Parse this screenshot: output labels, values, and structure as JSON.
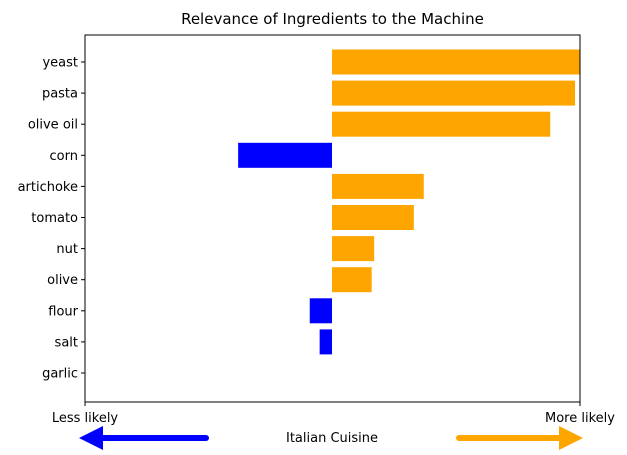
{
  "chart_data": {
    "type": "bar",
    "orientation": "horizontal",
    "title": "Relevance of Ingredients to the Machine",
    "categories": [
      "yeast",
      "pasta",
      "olive oil",
      "corn",
      "artichoke",
      "tomato",
      "nut",
      "olive",
      "flour",
      "salt",
      "garlic"
    ],
    "values": [
      1.0,
      0.98,
      0.88,
      -0.38,
      0.37,
      0.33,
      0.17,
      0.16,
      -0.09,
      -0.05,
      0.0
    ],
    "bar_colors": [
      "#ffa500",
      "#ffa500",
      "#ffa500",
      "#0000ff",
      "#ffa500",
      "#ffa500",
      "#ffa500",
      "#ffa500",
      "#0000ff",
      "#0000ff",
      "#ffa500"
    ],
    "xlim": [
      -1.0,
      1.0
    ],
    "ylabel": "",
    "x_end_labels": {
      "left": "Less likely",
      "right": "More likely"
    },
    "footer": {
      "label": "Italian Cuisine",
      "left_arrow_color": "#0000ff",
      "right_arrow_color": "#ffa500"
    },
    "grid": false,
    "legend": "none"
  }
}
